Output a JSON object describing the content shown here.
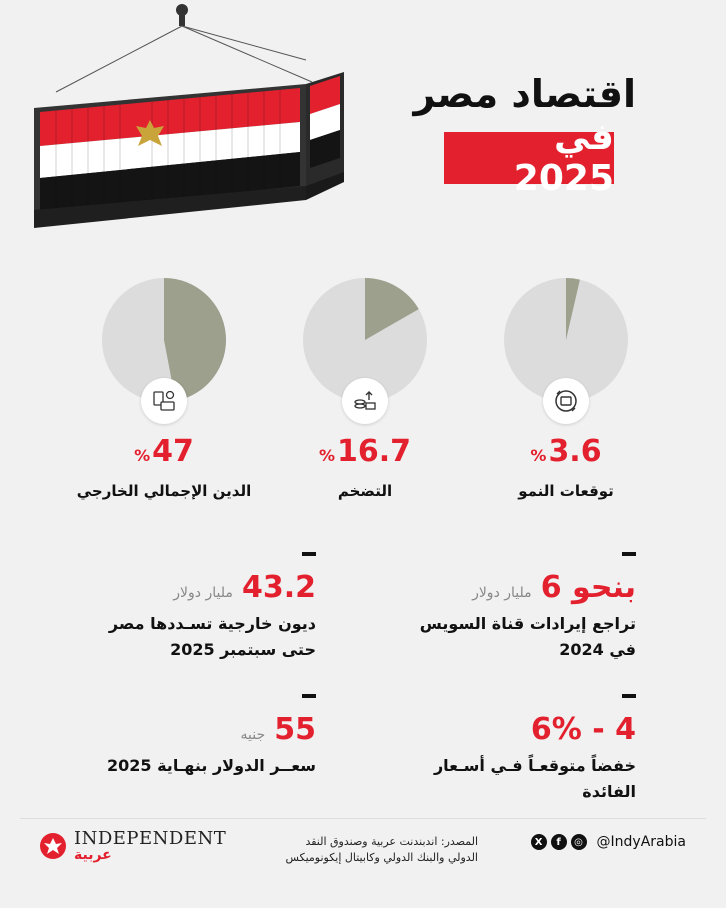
{
  "header": {
    "title": "اقتصاد مصر",
    "year": "في 2025"
  },
  "colors": {
    "accent": "#e3202e",
    "pie_bg": "#dcdcdc",
    "pie_slice": "#9da08d"
  },
  "stats": [
    {
      "value": "3.6",
      "pct": "%",
      "label": "توقعات النمو",
      "fraction": 0.036,
      "icon": "money-exchange-icon"
    },
    {
      "value": "16.7",
      "pct": "%",
      "label": "التضخم",
      "fraction": 0.167,
      "icon": "coins-rising-icon"
    },
    {
      "value": "47",
      "pct": "%",
      "label": "الدين الإجمالي الخارجي",
      "fraction": 0.47,
      "icon": "calculator-card-icon"
    }
  ],
  "facts": [
    {
      "big": "بنحو 6",
      "unit": "مليار دولار",
      "line1": "تراجع إيرادات قناة السويس",
      "line2": "في 2024"
    },
    {
      "big": "43.2",
      "unit": "مليار دولار",
      "line1": "ديون خارجية تسـددها مصر",
      "line2": "حتى سبتمبر 2025"
    },
    {
      "big": "4 - 6%",
      "unit": "",
      "line1": "خفضاً متوقعـاً فـي أسـعار",
      "line2": "الفائدة"
    },
    {
      "big": "55",
      "unit": "جنيه",
      "line1": "سعــر الدولار بنهـاية 2025",
      "line2": ""
    }
  ],
  "footer": {
    "handle": "@IndyArabia",
    "source_line1": "المصدر: اندبندنت عربية وصندوق النقد",
    "source_line2": "الدولي والبنك الدولي وكابيتال إيكونوميكس",
    "brand": "INDEPENDENT",
    "brand_ar": "عربية",
    "social_icons": [
      "x-icon",
      "facebook-icon",
      "instagram-icon"
    ]
  }
}
